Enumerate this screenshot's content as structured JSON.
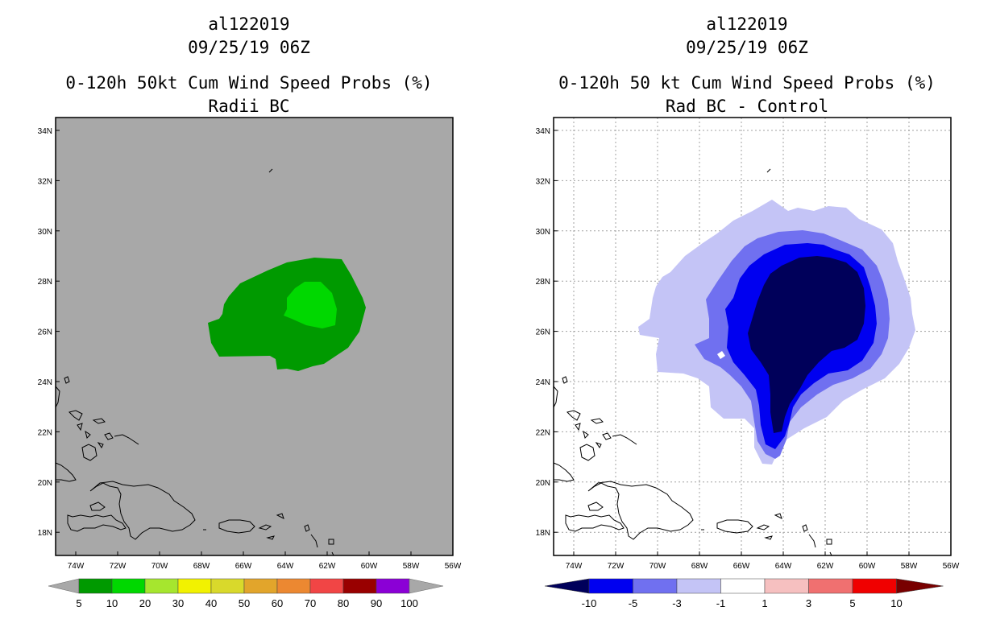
{
  "panels": [
    {
      "storm_id": "al122019",
      "datetime": "09/25/19 06Z",
      "product": "0-120h 50kt Cum Wind Speed Probs (%)",
      "subtitle": "Radii BC",
      "colorbar_labels": [
        "5",
        "10",
        "20",
        "30",
        "40",
        "50",
        "60",
        "70",
        "80",
        "90",
        "100"
      ],
      "colorbar_colors": [
        "#009a00",
        "#00d800",
        "#a6e62e",
        "#f2f200",
        "#d9d92b",
        "#e2a52b",
        "#ec8831",
        "#f14545",
        "#990000",
        "#8b00d6"
      ],
      "map_background": "#a8a8a8"
    },
    {
      "storm_id": "al122019",
      "datetime": "09/25/19 06Z",
      "product": "0-120h 50 kt Cum Wind Speed Probs (%)",
      "subtitle": "Rad BC - Control",
      "colorbar_labels": [
        "-10",
        "-5",
        "-3",
        "-1",
        "1",
        "3",
        "5",
        "10"
      ],
      "colorbar_colors": [
        "#00005a",
        "#0000f0",
        "#7070f0",
        "#c4c4f6",
        "#ffffff",
        "#f6c0c0",
        "#f07070",
        "#f00000",
        "#780000"
      ],
      "map_background": "#ffffff"
    }
  ],
  "lat_labels": [
    "34N",
    "32N",
    "30N",
    "28N",
    "26N",
    "24N",
    "22N",
    "20N",
    "18N"
  ],
  "lon_labels": [
    "74W",
    "72W",
    "70W",
    "68W",
    "66W",
    "64W",
    "62W",
    "60W",
    "58W",
    "56W"
  ],
  "colors": {
    "prob_10": "#009a00",
    "prob_20": "#00d800",
    "diff_minus10": "#00005a",
    "diff_minus5": "#0000f0",
    "diff_minus3": "#7070f0",
    "diff_minus1": "#c4c4f6"
  }
}
